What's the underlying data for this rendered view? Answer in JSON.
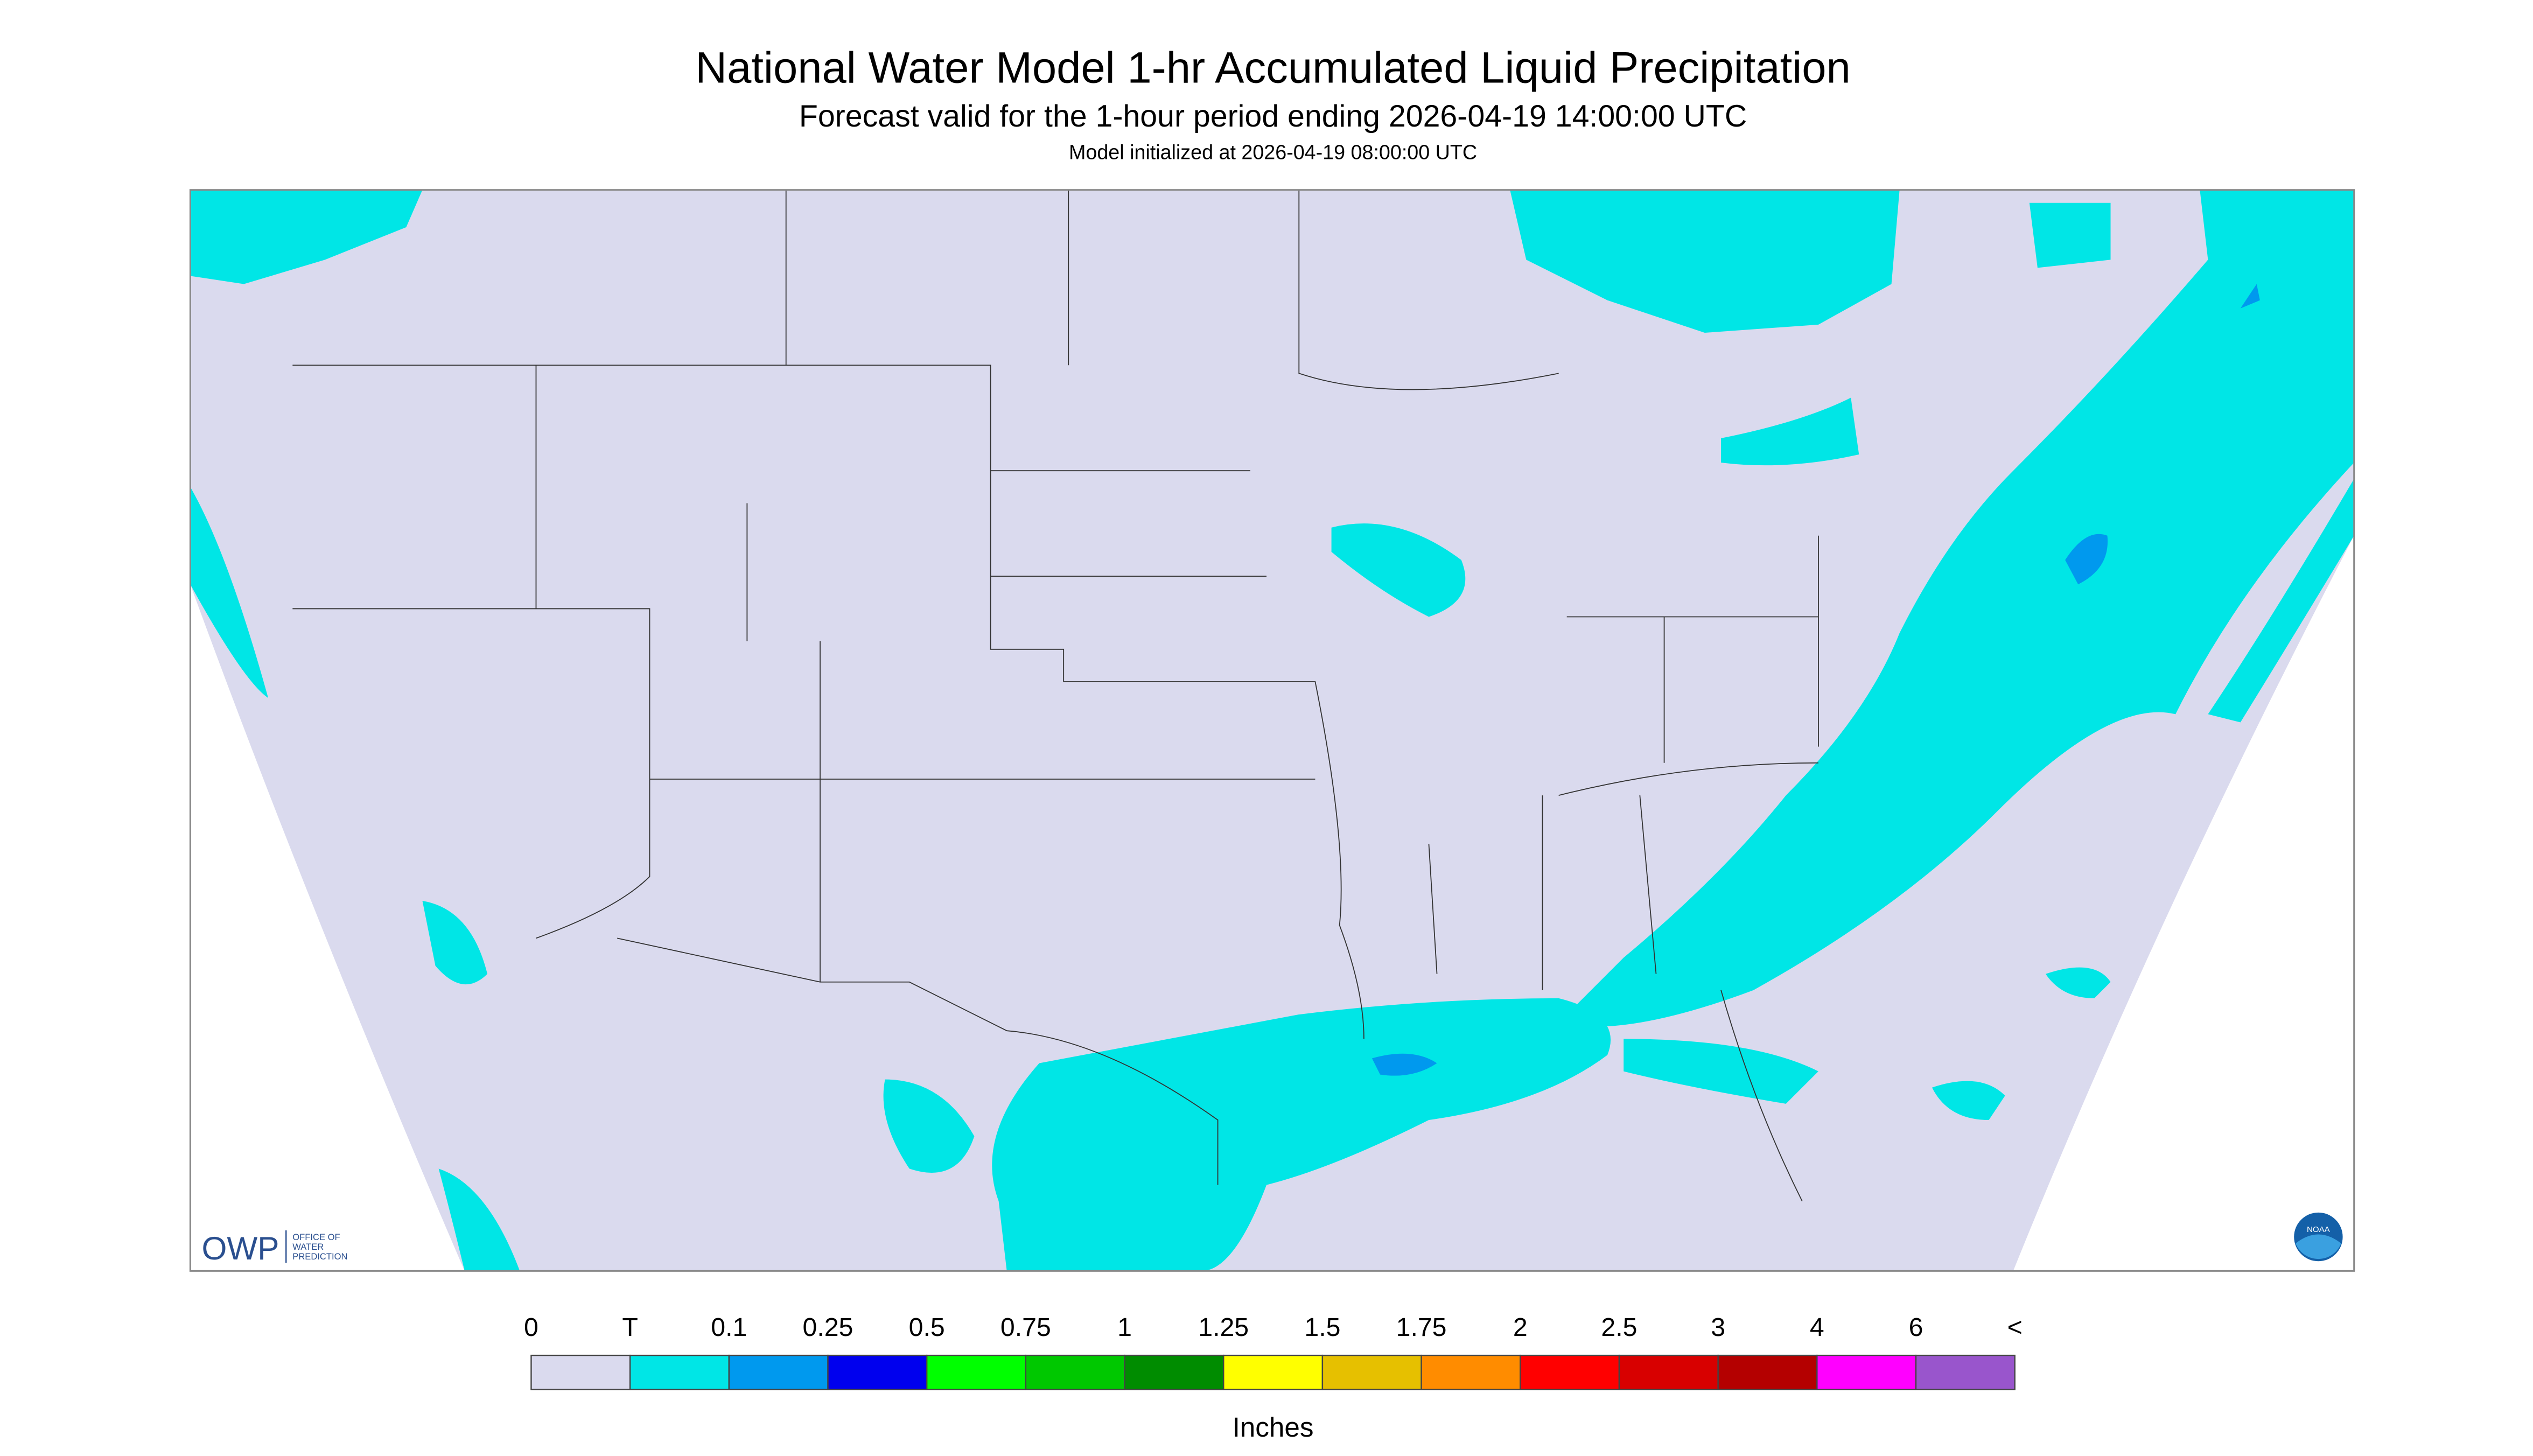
{
  "header": {
    "title": "National Water Model 1-hr Accumulated Liquid Precipitation",
    "subtitle": "Forecast valid for the 1-hour period ending 2026-04-19 14:00:00 UTC",
    "init": "Model initialized at 2026-04-19 08:00:00 UTC"
  },
  "logos": {
    "owp": "OWP",
    "owp_text": [
      "OFFICE OF",
      "WATER",
      "PREDICTION"
    ],
    "noaa": "NOAA"
  },
  "legend": {
    "labels": [
      "0",
      "T",
      "0.1",
      "0.25",
      "0.5",
      "0.75",
      "1",
      "1.25",
      "1.5",
      "1.75",
      "2",
      "2.5",
      "3",
      "4",
      "6",
      "<"
    ],
    "colors": [
      "#dadaee",
      "#00e6e6",
      "#0099ee",
      "#0000ee",
      "#00ff00",
      "#00c800",
      "#008c00",
      "#ffff00",
      "#e6c000",
      "#ff8c00",
      "#ff0000",
      "#d80000",
      "#b40000",
      "#ff00ff",
      "#9955cc"
    ],
    "units": "Inches"
  }
}
